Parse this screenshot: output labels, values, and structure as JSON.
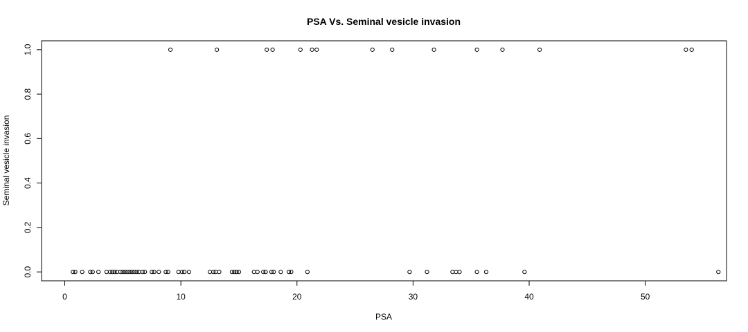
{
  "chart_data": {
    "type": "scatter",
    "title": "PSA Vs. Seminal vesicle invasion",
    "xlabel": "PSA",
    "ylabel": "Seminal vesicle invasion",
    "xlim": [
      -2,
      57
    ],
    "ylim": [
      -0.04,
      1.04
    ],
    "xticks": [
      0,
      10,
      20,
      30,
      40,
      50
    ],
    "xtick_labels": [
      "0",
      "10",
      "20",
      "30",
      "40",
      "50"
    ],
    "yticks": [
      0.0,
      0.2,
      0.4,
      0.6,
      0.8,
      1.0
    ],
    "ytick_labels": [
      "0.0",
      "0.2",
      "0.4",
      "0.6",
      "0.8",
      "1.0"
    ],
    "grid": false,
    "marker": "open-circle",
    "series": [
      {
        "points": [
          [
            0.7,
            0
          ],
          [
            0.9,
            0
          ],
          [
            1.5,
            0
          ],
          [
            2.2,
            0
          ],
          [
            2.4,
            0
          ],
          [
            2.9,
            0
          ],
          [
            3.6,
            0
          ],
          [
            3.9,
            0
          ],
          [
            4.1,
            0
          ],
          [
            4.3,
            0
          ],
          [
            4.5,
            0
          ],
          [
            4.8,
            0
          ],
          [
            5.0,
            0
          ],
          [
            5.2,
            0
          ],
          [
            5.4,
            0
          ],
          [
            5.6,
            0
          ],
          [
            5.8,
            0
          ],
          [
            6.0,
            0
          ],
          [
            6.2,
            0
          ],
          [
            6.4,
            0
          ],
          [
            6.7,
            0
          ],
          [
            6.9,
            0
          ],
          [
            7.5,
            0
          ],
          [
            7.7,
            0
          ],
          [
            8.1,
            0
          ],
          [
            8.7,
            0
          ],
          [
            8.9,
            0
          ],
          [
            9.1,
            1
          ],
          [
            9.8,
            0
          ],
          [
            10.1,
            0
          ],
          [
            10.3,
            0
          ],
          [
            10.7,
            0
          ],
          [
            12.5,
            0
          ],
          [
            12.8,
            0
          ],
          [
            13.0,
            0
          ],
          [
            13.1,
            1
          ],
          [
            13.3,
            0
          ],
          [
            14.4,
            0
          ],
          [
            14.6,
            0
          ],
          [
            14.8,
            0
          ],
          [
            15.0,
            0
          ],
          [
            16.3,
            0
          ],
          [
            16.6,
            0
          ],
          [
            17.1,
            0
          ],
          [
            17.3,
            0
          ],
          [
            17.4,
            1
          ],
          [
            17.8,
            0
          ],
          [
            17.9,
            1
          ],
          [
            18.0,
            0
          ],
          [
            18.6,
            0
          ],
          [
            19.3,
            0
          ],
          [
            19.5,
            0
          ],
          [
            20.3,
            1
          ],
          [
            20.9,
            0
          ],
          [
            21.3,
            1
          ],
          [
            21.7,
            1
          ],
          [
            26.5,
            1
          ],
          [
            28.2,
            1
          ],
          [
            29.7,
            0
          ],
          [
            31.2,
            0
          ],
          [
            31.8,
            1
          ],
          [
            33.4,
            0
          ],
          [
            33.7,
            0
          ],
          [
            34.0,
            0
          ],
          [
            35.5,
            1
          ],
          [
            35.5,
            0
          ],
          [
            36.3,
            0
          ],
          [
            37.7,
            1
          ],
          [
            39.6,
            0
          ],
          [
            40.9,
            1
          ],
          [
            53.5,
            1
          ],
          [
            54.0,
            1
          ],
          [
            56.3,
            0
          ]
        ]
      }
    ]
  }
}
